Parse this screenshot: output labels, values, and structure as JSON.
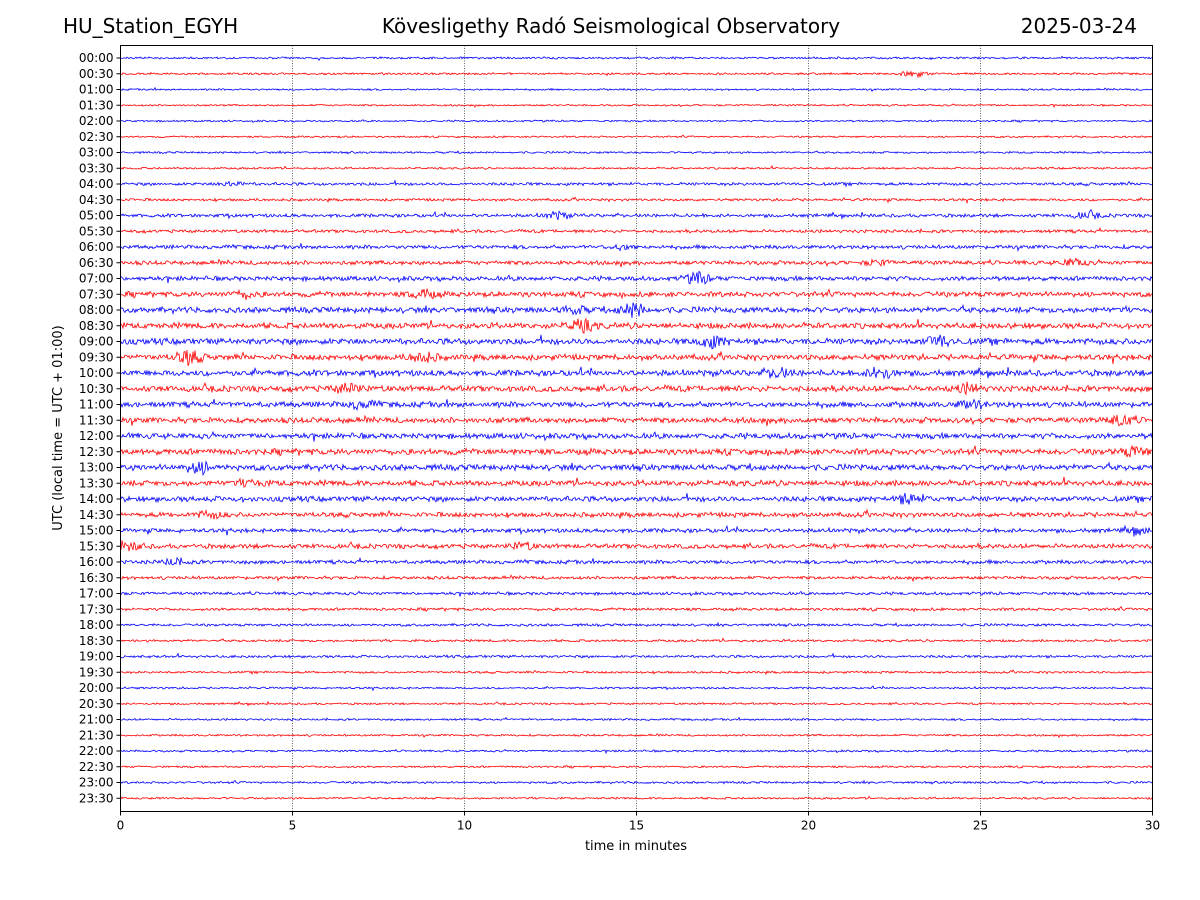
{
  "header": {
    "station": "HU_Station_EGYH",
    "observatory": "Kövesligethy Radó Seismological Observatory",
    "date": "2025-03-24"
  },
  "chart_data": {
    "type": "line",
    "xlabel": "time in minutes",
    "ylabel": "UTC (local time = UTC + 01:00)",
    "xlim": [
      0,
      30
    ],
    "xticks": [
      0,
      5,
      10,
      15,
      20,
      25,
      30
    ],
    "grid": "vertical dotted at x ticks",
    "colors": {
      "even_rows": "#0000ff",
      "odd_rows": "#ff0000"
    },
    "rows": [
      {
        "label": "00:00",
        "noise": 1.0,
        "events": []
      },
      {
        "label": "00:30",
        "noise": 1.0,
        "events": [
          {
            "t": 23.1,
            "amp": 3
          }
        ]
      },
      {
        "label": "01:00",
        "noise": 0.9,
        "events": []
      },
      {
        "label": "01:30",
        "noise": 0.9,
        "events": []
      },
      {
        "label": "02:00",
        "noise": 0.9,
        "events": []
      },
      {
        "label": "02:30",
        "noise": 0.9,
        "events": []
      },
      {
        "label": "03:00",
        "noise": 1.0,
        "events": []
      },
      {
        "label": "03:30",
        "noise": 1.0,
        "events": []
      },
      {
        "label": "04:00",
        "noise": 1.5,
        "events": [
          {
            "t": 3.2,
            "amp": 2
          }
        ]
      },
      {
        "label": "04:30",
        "noise": 1.3,
        "events": []
      },
      {
        "label": "05:00",
        "noise": 1.7,
        "events": [
          {
            "t": 12.7,
            "amp": 3
          },
          {
            "t": 28.1,
            "amp": 3
          }
        ]
      },
      {
        "label": "05:30",
        "noise": 1.6,
        "events": []
      },
      {
        "label": "06:00",
        "noise": 1.9,
        "events": [
          {
            "t": 14.6,
            "amp": 2
          }
        ]
      },
      {
        "label": "06:30",
        "noise": 2.1,
        "events": [
          {
            "t": 22.0,
            "amp": 2
          },
          {
            "t": 27.7,
            "amp": 3
          }
        ]
      },
      {
        "label": "07:00",
        "noise": 2.3,
        "events": [
          {
            "t": 16.8,
            "amp": 5
          }
        ]
      },
      {
        "label": "07:30",
        "noise": 2.6,
        "events": [
          {
            "t": 8.8,
            "amp": 4
          },
          {
            "t": 3.6,
            "amp": 3
          }
        ]
      },
      {
        "label": "08:00",
        "noise": 2.9,
        "events": [
          {
            "t": 13.2,
            "amp": 3
          },
          {
            "t": 14.9,
            "amp": 6
          }
        ]
      },
      {
        "label": "08:30",
        "noise": 2.9,
        "events": [
          {
            "t": 13.4,
            "amp": 5
          }
        ]
      },
      {
        "label": "09:00",
        "noise": 3.1,
        "events": [
          {
            "t": 17.2,
            "amp": 5
          },
          {
            "t": 23.8,
            "amp": 5
          }
        ]
      },
      {
        "label": "09:30",
        "noise": 2.9,
        "events": [
          {
            "t": 2.0,
            "amp": 6
          },
          {
            "t": 8.8,
            "amp": 4
          }
        ]
      },
      {
        "label": "10:00",
        "noise": 3.0,
        "events": [
          {
            "t": 19.1,
            "amp": 4
          },
          {
            "t": 22.1,
            "amp": 5
          }
        ]
      },
      {
        "label": "10:30",
        "noise": 3.0,
        "events": [
          {
            "t": 6.6,
            "amp": 4
          },
          {
            "t": 24.6,
            "amp": 4
          }
        ]
      },
      {
        "label": "11:00",
        "noise": 2.8,
        "events": [
          {
            "t": 7.0,
            "amp": 3
          },
          {
            "t": 24.7,
            "amp": 3
          }
        ]
      },
      {
        "label": "11:30",
        "noise": 2.8,
        "events": [
          {
            "t": 29.1,
            "amp": 5
          }
        ]
      },
      {
        "label": "12:00",
        "noise": 2.8,
        "events": []
      },
      {
        "label": "12:30",
        "noise": 3.0,
        "events": [
          {
            "t": 29.5,
            "amp": 4
          }
        ]
      },
      {
        "label": "13:00",
        "noise": 3.0,
        "events": [
          {
            "t": 2.3,
            "amp": 5
          }
        ]
      },
      {
        "label": "13:30",
        "noise": 2.8,
        "events": [
          {
            "t": 3.8,
            "amp": 3
          }
        ]
      },
      {
        "label": "14:00",
        "noise": 2.7,
        "events": [
          {
            "t": 23.0,
            "amp": 5
          }
        ]
      },
      {
        "label": "14:30",
        "noise": 2.4,
        "events": [
          {
            "t": 2.6,
            "amp": 3
          }
        ]
      },
      {
        "label": "15:00",
        "noise": 2.1,
        "events": [
          {
            "t": 29.6,
            "amp": 3
          }
        ]
      },
      {
        "label": "15:30",
        "noise": 2.3,
        "events": [
          {
            "t": 0.3,
            "amp": 3
          },
          {
            "t": 11.7,
            "amp": 3
          }
        ]
      },
      {
        "label": "16:00",
        "noise": 1.9,
        "events": [
          {
            "t": 1.6,
            "amp": 3
          }
        ]
      },
      {
        "label": "16:30",
        "noise": 1.6,
        "events": []
      },
      {
        "label": "17:00",
        "noise": 1.5,
        "events": []
      },
      {
        "label": "17:30",
        "noise": 1.4,
        "events": []
      },
      {
        "label": "18:00",
        "noise": 1.3,
        "events": []
      },
      {
        "label": "18:30",
        "noise": 1.2,
        "events": []
      },
      {
        "label": "19:00",
        "noise": 1.3,
        "events": []
      },
      {
        "label": "19:30",
        "noise": 1.1,
        "events": []
      },
      {
        "label": "20:00",
        "noise": 1.0,
        "events": []
      },
      {
        "label": "20:30",
        "noise": 1.0,
        "events": []
      },
      {
        "label": "21:00",
        "noise": 1.0,
        "events": []
      },
      {
        "label": "21:30",
        "noise": 1.0,
        "events": []
      },
      {
        "label": "22:00",
        "noise": 1.0,
        "events": []
      },
      {
        "label": "22:30",
        "noise": 1.0,
        "events": []
      },
      {
        "label": "23:00",
        "noise": 1.1,
        "events": []
      },
      {
        "label": "23:30",
        "noise": 1.0,
        "events": []
      }
    ]
  }
}
